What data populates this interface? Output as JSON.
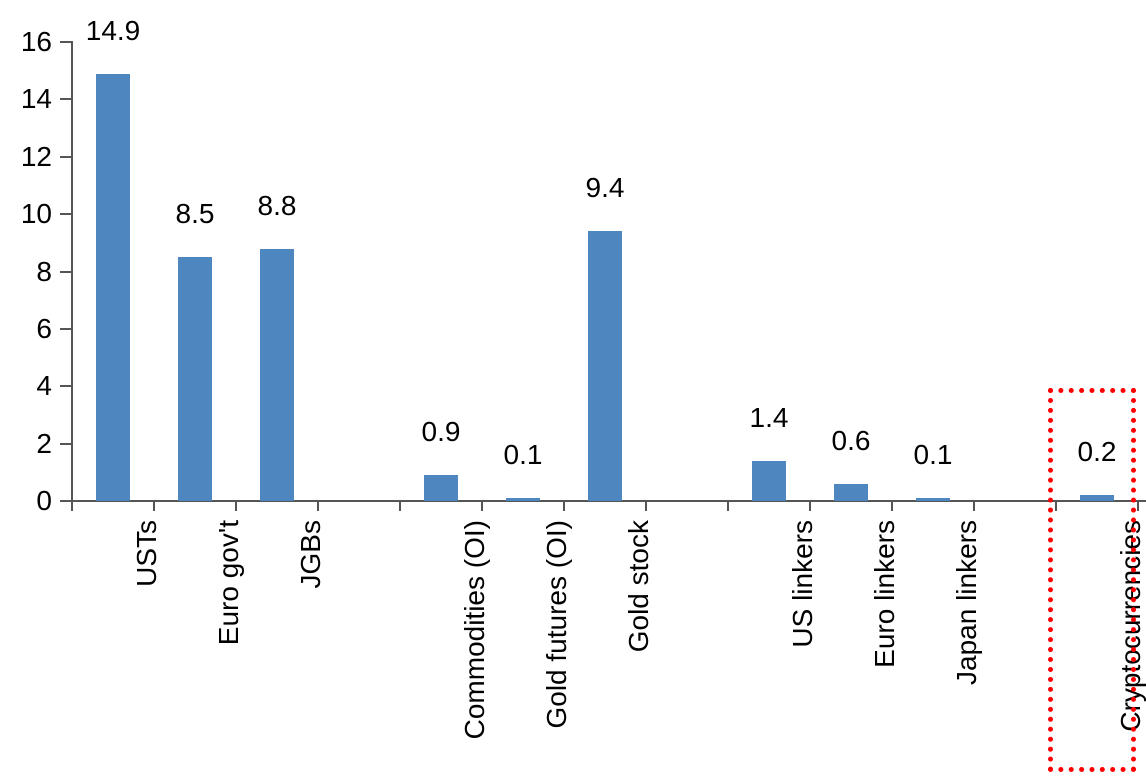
{
  "chart_data": {
    "type": "bar",
    "title": "",
    "xlabel": "",
    "ylabel": "",
    "grid": false,
    "legend": false,
    "ylim": [
      0,
      16
    ],
    "yticks": [
      0,
      2,
      4,
      6,
      8,
      10,
      12,
      14,
      16
    ],
    "total_slots": 13,
    "categories": [
      "USTs",
      "Euro gov't",
      "JGBs",
      "Commodities (OI)",
      "Gold futures (OI)",
      "Gold stock",
      "US linkers",
      "Euro linkers",
      "Japan linkers",
      "Cryptocurrencies"
    ],
    "values": [
      14.9,
      8.5,
      8.8,
      0.9,
      0.1,
      9.4,
      1.4,
      0.6,
      0.1,
      0.2
    ],
    "value_labels": [
      "14.9",
      "8.5",
      "8.8",
      "0.9",
      "0.1",
      "9.4",
      "1.4",
      "0.6",
      "0.1",
      "0.2"
    ],
    "slots": [
      1,
      2,
      3,
      5,
      6,
      7,
      9,
      10,
      11,
      13
    ],
    "colors": {
      "bar": "#4e86c0",
      "axis": "#555555",
      "text": "#000000",
      "highlight": "#ff0000"
    },
    "highlight": {
      "category": "Cryptocurrencies",
      "slot": 13,
      "style": "red-dotted-rectangle"
    }
  }
}
